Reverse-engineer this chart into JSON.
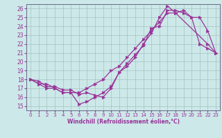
{
  "xlabel": "Windchill (Refroidissement éolien,°C)",
  "background_color": "#cce8e8",
  "line_color": "#993399",
  "grid_color": "#a0c8c8",
  "xlim": [
    -0.5,
    23.5
  ],
  "ylim": [
    14.5,
    26.5
  ],
  "yticks": [
    15,
    16,
    17,
    18,
    19,
    20,
    21,
    22,
    23,
    24,
    25,
    26
  ],
  "xticks": [
    0,
    1,
    2,
    3,
    4,
    5,
    6,
    7,
    8,
    9,
    10,
    11,
    12,
    13,
    14,
    15,
    16,
    17,
    18,
    19,
    20,
    21,
    22,
    23
  ],
  "line1_x": [
    0,
    1,
    2,
    3,
    4,
    5,
    6,
    7,
    8,
    9,
    10,
    11,
    12,
    13,
    14,
    15,
    16,
    17,
    18,
    19,
    20,
    21,
    22,
    23
  ],
  "line1_y": [
    18,
    17.5,
    17.5,
    17.0,
    16.5,
    16.5,
    16.5,
    17.0,
    17.5,
    18.0,
    19.0,
    19.5,
    20.5,
    21.5,
    22.5,
    23.5,
    24.5,
    25.5,
    25.5,
    25.8,
    25.0,
    22.0,
    21.5,
    21.0
  ],
  "line2_x": [
    0,
    1,
    2,
    3,
    4,
    5,
    6,
    7,
    8,
    9,
    10,
    11,
    12,
    13,
    14,
    15,
    16,
    17,
    18,
    22,
    23
  ],
  "line2_y": [
    18,
    17.5,
    17.0,
    17.0,
    16.5,
    16.5,
    15.2,
    15.5,
    16.0,
    16.5,
    17.2,
    18.8,
    19.5,
    20.5,
    22.0,
    23.2,
    25.0,
    26.3,
    25.5,
    22.0,
    21.0
  ],
  "line3_x": [
    0,
    1,
    2,
    3,
    4,
    5,
    6,
    7,
    8,
    9,
    10,
    11,
    12,
    13,
    14,
    15,
    16,
    17,
    18,
    19,
    20,
    21,
    22,
    23
  ],
  "line3_y": [
    18,
    17.8,
    17.2,
    17.2,
    16.8,
    16.8,
    16.3,
    16.5,
    16.2,
    16.0,
    17.0,
    18.8,
    19.8,
    20.8,
    21.8,
    23.8,
    24.0,
    25.8,
    25.8,
    25.5,
    25.0,
    25.0,
    23.5,
    21.0
  ]
}
